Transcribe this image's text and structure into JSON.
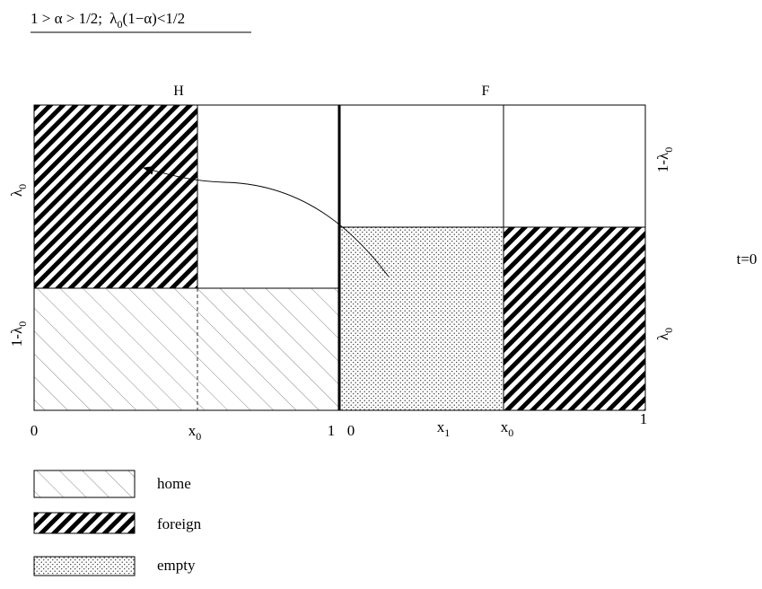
{
  "condition": {
    "part1": "1 > α > 1/2;",
    "lam": "λ",
    "sub0": "0",
    "part2": "(1−α)<1/2"
  },
  "panels": {
    "home_label": "H",
    "foreign_label": "F"
  },
  "axis": {
    "h_zero": "0",
    "h_x0": "x",
    "h_x0_sub": "0",
    "h_one": "1",
    "f_zero": "0",
    "f_x1": "x",
    "f_x1_sub": "1",
    "f_x0": "x",
    "f_x0_sub": "0",
    "f_one": "1"
  },
  "side_labels": {
    "h_top": "λ",
    "h_top_sub": "0",
    "h_bottom": "1-λ",
    "h_bottom_sub": "0",
    "f_top": "1-λ",
    "f_top_sub": "0",
    "f_bottom": "λ",
    "f_bottom_sub": "0"
  },
  "time_label": "t=0",
  "legend": [
    {
      "key": "home",
      "label": "home"
    },
    {
      "key": "foreign",
      "label": "foreign"
    },
    {
      "key": "empty",
      "label": "empty"
    }
  ]
}
